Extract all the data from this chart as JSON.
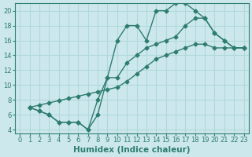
{
  "line1_x": [
    1,
    2,
    3,
    4,
    5,
    6,
    7,
    8,
    9,
    10,
    11,
    12,
    13,
    14,
    15,
    16,
    17,
    18,
    19,
    20,
    21,
    22,
    23
  ],
  "line1_y": [
    7,
    6.5,
    6,
    5,
    5,
    5,
    4,
    6,
    11,
    16,
    18,
    18,
    16,
    20,
    20,
    21,
    21,
    20,
    19,
    17,
    16,
    15,
    15
  ],
  "line2_x": [
    1,
    2,
    3,
    4,
    5,
    6,
    7,
    8,
    9,
    10,
    11,
    12,
    13,
    14,
    15,
    16,
    17,
    18,
    19,
    20,
    21,
    22,
    23
  ],
  "line2_y": [
    7,
    6.5,
    6,
    5,
    5,
    5,
    4,
    8,
    11,
    11,
    13,
    14,
    15,
    15.5,
    16,
    16.5,
    18,
    19,
    19,
    17,
    16,
    15,
    15
  ],
  "line3_x": [
    1,
    2,
    3,
    4,
    5,
    6,
    7,
    8,
    9,
    10,
    11,
    12,
    13,
    14,
    15,
    16,
    17,
    18,
    19,
    20,
    21,
    22,
    23
  ],
  "line3_y": [
    7,
    7.3,
    7.6,
    7.9,
    8.2,
    8.5,
    8.8,
    9.1,
    9.4,
    9.7,
    10.5,
    11.5,
    12.5,
    13.5,
    14,
    14.5,
    15,
    15.5,
    15.5,
    15,
    15,
    15,
    15
  ],
  "line_color": "#2e7d6e",
  "bg_color": "#cce8ec",
  "grid_color": "#b0d8dc",
  "xlabel": "Humidex (Indice chaleur)",
  "xlim": [
    -0.5,
    23.5
  ],
  "ylim": [
    3.5,
    21
  ],
  "yticks": [
    4,
    6,
    8,
    10,
    12,
    14,
    16,
    18,
    20
  ],
  "xticks": [
    0,
    1,
    2,
    3,
    4,
    5,
    6,
    7,
    8,
    9,
    10,
    11,
    12,
    13,
    14,
    15,
    16,
    17,
    18,
    19,
    20,
    21,
    22,
    23
  ],
  "marker": "D",
  "markersize": 2.5,
  "linewidth": 1.0,
  "xlabel_fontsize": 7.5,
  "tick_fontsize": 6
}
